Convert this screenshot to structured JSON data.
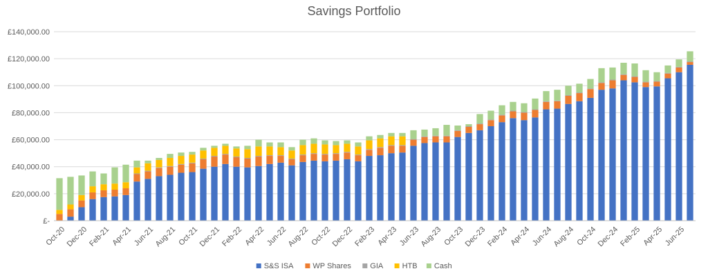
{
  "chart_data": {
    "type": "bar",
    "stacked": true,
    "title": "Savings Portfolio",
    "xlabel": "",
    "ylabel": "",
    "ylim": [
      0,
      140000
    ],
    "y_ticks": [
      0,
      20000,
      40000,
      60000,
      80000,
      100000,
      120000,
      140000
    ],
    "y_tick_labels": [
      "£-",
      "£20,000.00",
      "£40,000.00",
      "£60,000.00",
      "£80,000.00",
      "£100,000.00",
      "£120,000.00",
      "£140,000.00"
    ],
    "grid": true,
    "legend_position": "bottom",
    "colors": {
      "S&S ISA": "#4472C4",
      "WP Shares": "#ED7D31",
      "GIA": "#A5A5A5",
      "HTB": "#FFC000",
      "Cash": "#A9D18E"
    },
    "categories": [
      "Oct-20",
      "Nov-20",
      "Dec-20",
      "Jan-21",
      "Feb-21",
      "Mar-21",
      "Apr-21",
      "May-21",
      "Jun-21",
      "Jul-21",
      "Aug-21",
      "Sep-21",
      "Oct-21",
      "Nov-21",
      "Dec-21",
      "Jan-22",
      "Feb-22",
      "Mar-22",
      "Apr-22",
      "May-22",
      "Jun-22",
      "Jul-22",
      "Aug-22",
      "Sep-22",
      "Oct-22",
      "Nov-22",
      "Dec-22",
      "Jan-23",
      "Feb-23",
      "Mar-23",
      "Apr-23",
      "May-23",
      "Jun-23",
      "Jul-23",
      "Aug-23",
      "Sep-23",
      "Oct-23",
      "Nov-23",
      "Dec-23",
      "Jan-24",
      "Feb-24",
      "Mar-24",
      "Apr-24",
      "May-24",
      "Jun-24",
      "Jul-24",
      "Aug-24",
      "Sep-24",
      "Oct-24",
      "Nov-24",
      "Dec-24",
      "Jan-25",
      "Feb-25",
      "Mar-25",
      "Apr-25",
      "May-25",
      "Jun-25",
      "Jul-25"
    ],
    "x_tick_labels": [
      "Oct-20",
      "Dec-20",
      "Feb-21",
      "Apr-21",
      "Jun-21",
      "Aug-21",
      "Oct-21",
      "Dec-21",
      "Feb-22",
      "Apr-22",
      "Jun-22",
      "Aug-22",
      "Oct-22",
      "Dec-22",
      "Feb-23",
      "Apr-23",
      "Jun-23",
      "Aug-23",
      "Oct-23",
      "Dec-23",
      "Feb-24",
      "Apr-24",
      "Jun-24",
      "Aug-24",
      "Oct-24",
      "Dec-24",
      "Feb-25",
      "Apr-25",
      "Jun-25"
    ],
    "series": [
      {
        "name": "S&S ISA",
        "values": [
          0,
          3000,
          10000,
          16000,
          17500,
          18000,
          19000,
          29000,
          31000,
          33000,
          34000,
          35500,
          36000,
          38500,
          40000,
          42000,
          40000,
          39500,
          40500,
          42000,
          43000,
          41000,
          43500,
          44500,
          44000,
          44500,
          45500,
          44000,
          48000,
          48500,
          50000,
          50500,
          55500,
          57500,
          58000,
          58000,
          62000,
          65000,
          67000,
          70000,
          73000,
          76000,
          74500,
          76500,
          82500,
          83000,
          86500,
          88500,
          91000,
          97000,
          98000,
          104000,
          102500,
          99000,
          99500,
          105500,
          110000,
          115500
        ]
      },
      {
        "name": "WP Shares",
        "values": [
          5000,
          5500,
          5000,
          5000,
          5000,
          5000,
          5000,
          5500,
          5500,
          6000,
          6000,
          6000,
          6500,
          7000,
          7500,
          7000,
          7000,
          6500,
          7000,
          6000,
          5000,
          4500,
          5000,
          5000,
          5000,
          5000,
          5000,
          4500,
          4500,
          5500,
          5500,
          5000,
          4500,
          4500,
          4500,
          4500,
          4500,
          4500,
          4500,
          4500,
          5000,
          5000,
          5500,
          5500,
          5500,
          5500,
          6000,
          6000,
          6500,
          5000,
          6000,
          4000,
          4000,
          3500,
          3500,
          3500,
          3500,
          2000
        ]
      },
      {
        "name": "GIA",
        "values": [
          0,
          0,
          0,
          0,
          0,
          0,
          0,
          500,
          500,
          500,
          500,
          500,
          500,
          500,
          500,
          500,
          500,
          500,
          500,
          500,
          500,
          500,
          500,
          500,
          500,
          500,
          500,
          500,
          500,
          500,
          500,
          500,
          500,
          500,
          500,
          500,
          500,
          500,
          500,
          500,
          500,
          500,
          500,
          500,
          500,
          500,
          500,
          500,
          500,
          500,
          500,
          500,
          500,
          500,
          500,
          500,
          500,
          500
        ]
      },
      {
        "name": "HTB",
        "values": [
          3000,
          3500,
          4000,
          4500,
          4500,
          4500,
          4500,
          4500,
          5500,
          5500,
          6000,
          6000,
          6000,
          6000,
          6000,
          6000,
          6000,
          6500,
          7000,
          6500,
          6000,
          6000,
          7000,
          7000,
          7000,
          6000,
          6000,
          6000,
          6500,
          6500,
          6500,
          6500,
          0,
          0,
          0,
          0,
          0,
          0,
          0,
          0,
          0,
          0,
          0,
          0,
          0,
          0,
          0,
          0,
          0,
          0,
          0,
          0,
          0,
          0,
          0,
          0,
          0,
          0
        ]
      },
      {
        "name": "Cash",
        "values": [
          23500,
          20500,
          14500,
          11000,
          8000,
          12000,
          13000,
          5000,
          2000,
          1500,
          3000,
          2500,
          2000,
          2000,
          1500,
          1500,
          1500,
          2500,
          5000,
          3000,
          3500,
          2500,
          4000,
          4000,
          3000,
          3000,
          2500,
          3000,
          3000,
          2500,
          2500,
          2500,
          6500,
          5000,
          5500,
          8000,
          3500,
          1500,
          7000,
          6500,
          7000,
          6500,
          6500,
          8000,
          7500,
          8000,
          7000,
          6500,
          7000,
          10500,
          9000,
          8500,
          9500,
          8500,
          6500,
          5500,
          5500,
          7500
        ]
      }
    ]
  }
}
